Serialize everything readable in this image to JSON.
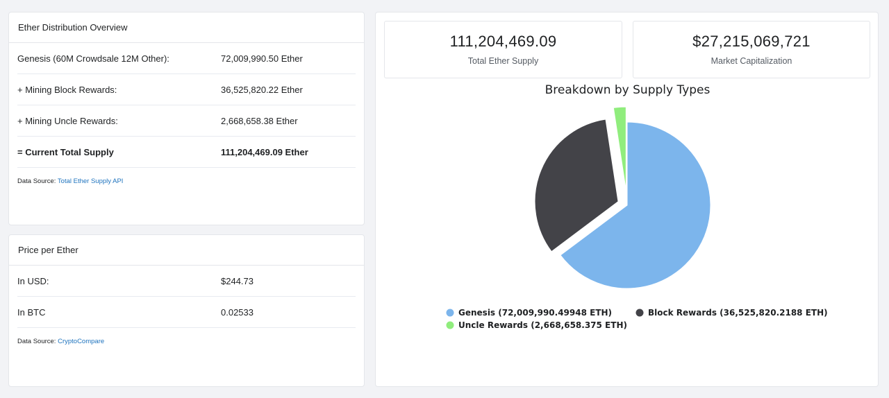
{
  "overview": {
    "title": "Ether Distribution Overview",
    "rows": [
      {
        "label": "Genesis (60M Crowdsale 12M Other):",
        "value": "72,009,990.50 Ether"
      },
      {
        "label": "+ Mining Block Rewards:",
        "value": "36,525,820.22 Ether"
      },
      {
        "label": "+ Mining Uncle Rewards:",
        "value": "2,668,658.38 Ether"
      },
      {
        "label": "= Current Total Supply",
        "value": "111,204,469.09 Ether"
      }
    ],
    "source_prefix": "Data Source: ",
    "source_link": "Total Ether Supply API"
  },
  "price": {
    "title": "Price per Ether",
    "rows": [
      {
        "label": "In USD:",
        "value": "$244.73"
      },
      {
        "label": "In BTC",
        "value": "0.02533"
      }
    ],
    "source_prefix": "Data Source: ",
    "source_link": "CryptoCompare"
  },
  "stats": {
    "supply_value": "111,204,469.09",
    "supply_label": "Total Ether Supply",
    "cap_value": "$27,215,069,721",
    "cap_label": "Market Capitalization"
  },
  "chart_data": {
    "type": "pie",
    "title": "Breakdown by Supply Types",
    "legend_position": "bottom",
    "series": [
      {
        "name": "Genesis (72,009,990.49948 ETH)",
        "value": 72009990.49948,
        "color": "#7cb5ec"
      },
      {
        "name": "Block Rewards (36,525,820.2188 ETH)",
        "value": 36525820.2188,
        "color": "#434348"
      },
      {
        "name": "Uncle Rewards (2,668,658.375 ETH)",
        "value": 2668658.375,
        "color": "#90ed7d"
      }
    ]
  }
}
